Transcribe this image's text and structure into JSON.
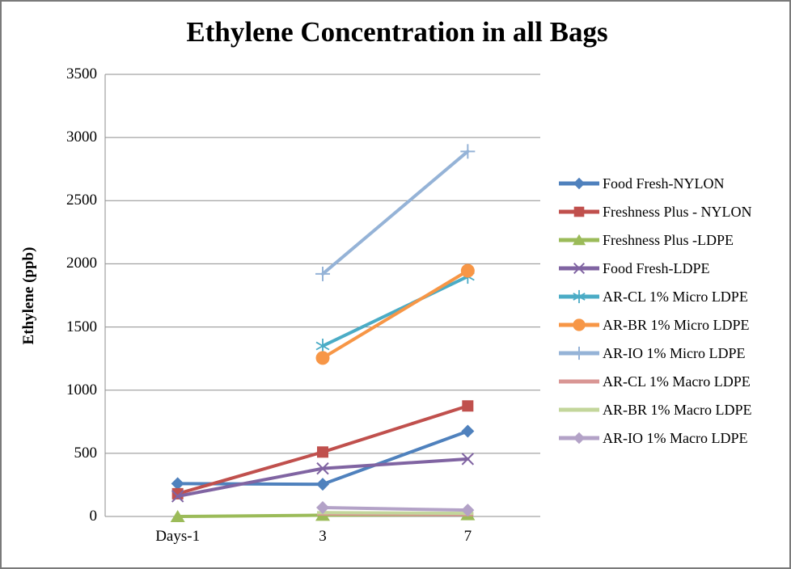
{
  "window": {
    "background_color": "#ffffff",
    "frame_border_color": "#7a7a7a"
  },
  "chart_data": {
    "type": "line",
    "title": "Ethylene Concentration in all Bags",
    "xlabel": "",
    "ylabel": "Ethylene (ppb)",
    "categories": [
      "Days-1",
      "3",
      "7"
    ],
    "ylim": [
      0,
      3500
    ],
    "yticks": [
      0,
      500,
      1000,
      1500,
      2000,
      2500,
      3000,
      3500
    ],
    "grid": "horizontal gridlines on",
    "gridline_color": "#8e8e8e",
    "legend_position": "right",
    "series": [
      {
        "name": "Food Fresh-NYLON",
        "color": "#4F81BD",
        "marker": "diamond",
        "values": [
          260,
          255,
          675
        ]
      },
      {
        "name": "Freshness Plus - NYLON",
        "color": "#C0504D",
        "marker": "square",
        "values": [
          180,
          510,
          875
        ]
      },
      {
        "name": "Freshness Plus -LDPE",
        "color": "#9BBB59",
        "marker": "triangle",
        "values": [
          0,
          10,
          15
        ]
      },
      {
        "name": "Food Fresh-LDPE",
        "color": "#8064A2",
        "marker": "x",
        "values": [
          160,
          380,
          455
        ]
      },
      {
        "name": "AR-CL 1% Micro LDPE",
        "color": "#4BACC6",
        "marker": "asterisk",
        "values": [
          null,
          1350,
          1900
        ]
      },
      {
        "name": "AR-BR 1% Micro LDPE",
        "color": "#F79646",
        "marker": "circle",
        "values": [
          null,
          1255,
          1945
        ]
      },
      {
        "name": "AR-IO 1% Micro LDPE",
        "color": "#95B3D7",
        "marker": "plus",
        "values": [
          null,
          1920,
          2890
        ]
      },
      {
        "name": "AR-CL 1% Macro LDPE",
        "color": "#D99694",
        "marker": "dash",
        "values": [
          null,
          20,
          15
        ]
      },
      {
        "name": "AR-BR 1% Macro LDPE",
        "color": "#C3D69B",
        "marker": "dash",
        "values": [
          null,
          30,
          25
        ]
      },
      {
        "name": "AR-IO 1% Macro LDPE",
        "color": "#B3A2C7",
        "marker": "diamond",
        "values": [
          null,
          70,
          50
        ]
      }
    ]
  }
}
